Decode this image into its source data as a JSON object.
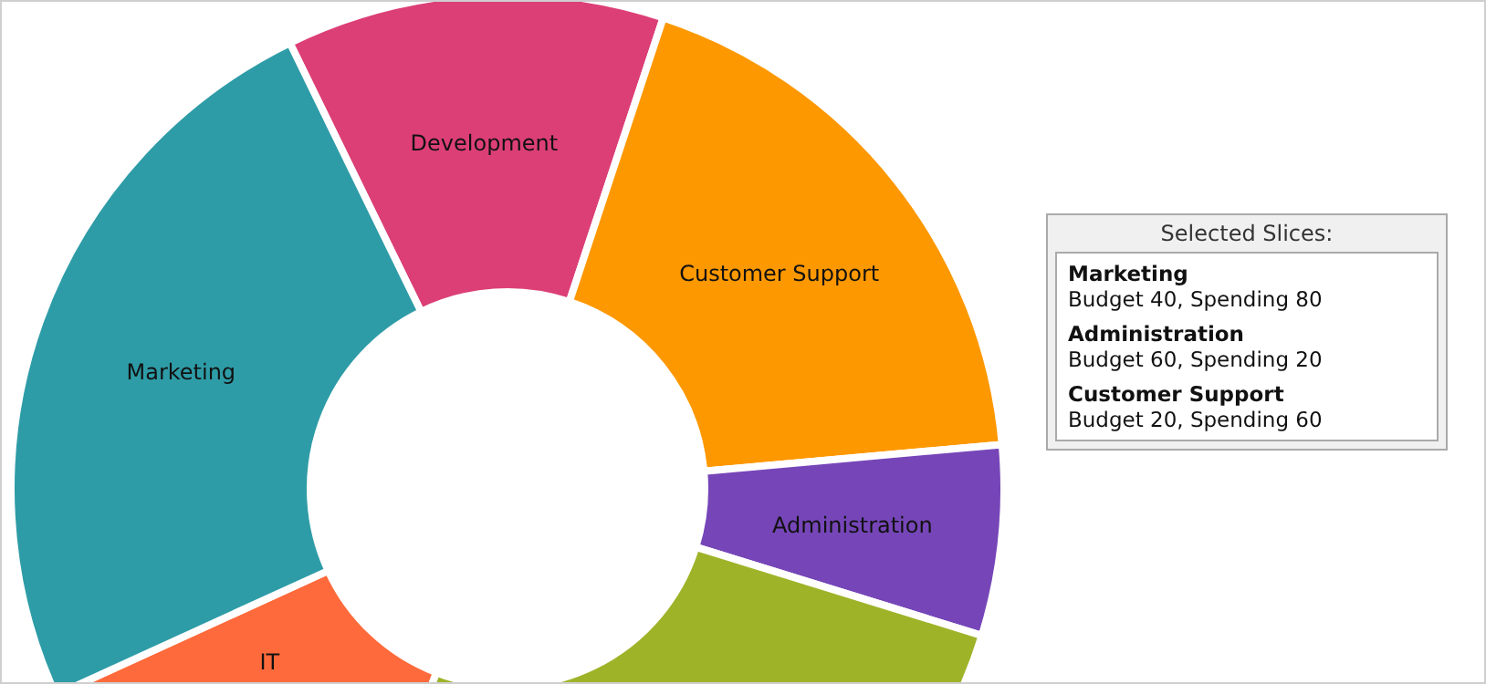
{
  "chart_data": {
    "type": "donut",
    "categories": [
      "Development",
      "Customer Support",
      "Administration",
      null,
      "IT",
      "Marketing"
    ],
    "values": [
      12.3,
      18.5,
      6.2,
      26.1,
      12.3,
      24.6
    ],
    "colors": [
      "#dc3f76",
      "#fd9800",
      "#7646b8",
      "#9fb329",
      "#fe6a3b",
      "#2e9ca7"
    ],
    "legend": false,
    "annotations": [
      "Selected Slices:",
      "Marketing",
      "Budget 40, Spending 80",
      "Administration",
      "Budget 60, Spending 20",
      "Customer Support",
      "Budget 20, Spending 60"
    ]
  }
}
